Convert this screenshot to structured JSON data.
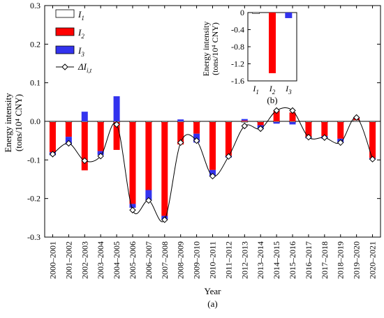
{
  "chart_data": [
    {
      "type": "bar",
      "subtype": "stacked-bar-with-line",
      "panel_label": "(a)",
      "xlabel": "Year",
      "ylabel_line1": "Energy intensity",
      "ylabel_line2": "(tons/10⁴ CNY)",
      "ylim": [
        -0.3,
        0.3
      ],
      "yticks": [
        "0.3",
        "0.2",
        "0.1",
        "0.0",
        "-0.1",
        "-0.2",
        "-0.3"
      ],
      "categories": [
        "2000–2001",
        "2001–2002",
        "2002–2003",
        "2003–2004",
        "2004–2005",
        "2005–2006",
        "2006–2007",
        "2007–2008",
        "2008–2009",
        "2009–2010",
        "2010–2011",
        "2011–2012",
        "2012–2013",
        "2013–2014",
        "2014–2015",
        "2015–2016",
        "2016–2017",
        "2017–2018",
        "2018–2019",
        "2019–2020",
        "2020–2021"
      ],
      "series": [
        {
          "name": "I1",
          "color": "#ffffff",
          "values": [
            -0.002,
            -0.002,
            -0.002,
            -0.002,
            -0.002,
            -0.002,
            -0.002,
            -0.002,
            -0.002,
            -0.002,
            -0.002,
            -0.002,
            -0.002,
            -0.002,
            -0.002,
            -0.002,
            -0.002,
            -0.002,
            -0.002,
            0.003,
            -0.002
          ]
        },
        {
          "name": "I2",
          "color": "#ff0000",
          "values": [
            -0.078,
            -0.038,
            -0.125,
            -0.075,
            -0.072,
            -0.212,
            -0.176,
            -0.243,
            -0.058,
            -0.03,
            -0.124,
            -0.087,
            0.002,
            -0.008,
            0.027,
            0.023,
            -0.038,
            -0.036,
            -0.043,
            0.005,
            -0.093
          ]
        },
        {
          "name": "I3",
          "color": "#3333ee",
          "values": [
            -0.008,
            -0.02,
            0.025,
            -0.01,
            0.065,
            -0.01,
            -0.027,
            -0.009,
            0.005,
            -0.023,
            -0.017,
            -0.005,
            0.004,
            -0.01,
            -0.004,
            -0.006,
            -0.004,
            -0.007,
            -0.01,
            0.002,
            -0.004
          ]
        }
      ],
      "line": {
        "name": "ΔI_{i,t}",
        "values": [
          -0.085,
          -0.057,
          -0.102,
          -0.09,
          -0.008,
          -0.23,
          -0.205,
          -0.255,
          -0.055,
          -0.05,
          -0.142,
          -0.091,
          -0.012,
          -0.019,
          0.028,
          0.028,
          -0.041,
          -0.042,
          -0.055,
          0.01,
          -0.098
        ]
      },
      "legend_placement": "top-left",
      "legend": [
        {
          "key": "I1",
          "base": "I",
          "sub": "1"
        },
        {
          "key": "I2",
          "base": "I",
          "sub": "2"
        },
        {
          "key": "I3",
          "base": "I",
          "sub": "3"
        },
        {
          "key": "dI",
          "base": "ΔI",
          "sub": "i,t"
        }
      ]
    },
    {
      "type": "bar",
      "panel_label": "(b)",
      "ylabel_line1": "Energy intensity",
      "ylabel_line2": "(tons/10⁴ CNY)",
      "ylim": [
        -1.6,
        0.0
      ],
      "yticks": [
        "0",
        "-0.4",
        "-0.8",
        "-1.2",
        "-1.6"
      ],
      "categories": [
        {
          "base": "I",
          "sub": "1"
        },
        {
          "base": "I",
          "sub": "2"
        },
        {
          "base": "I",
          "sub": "3"
        }
      ],
      "values": [
        -0.02,
        -1.42,
        -0.13
      ],
      "colors": [
        "#ffffff",
        "#ff0000",
        "#3333ee"
      ]
    }
  ]
}
